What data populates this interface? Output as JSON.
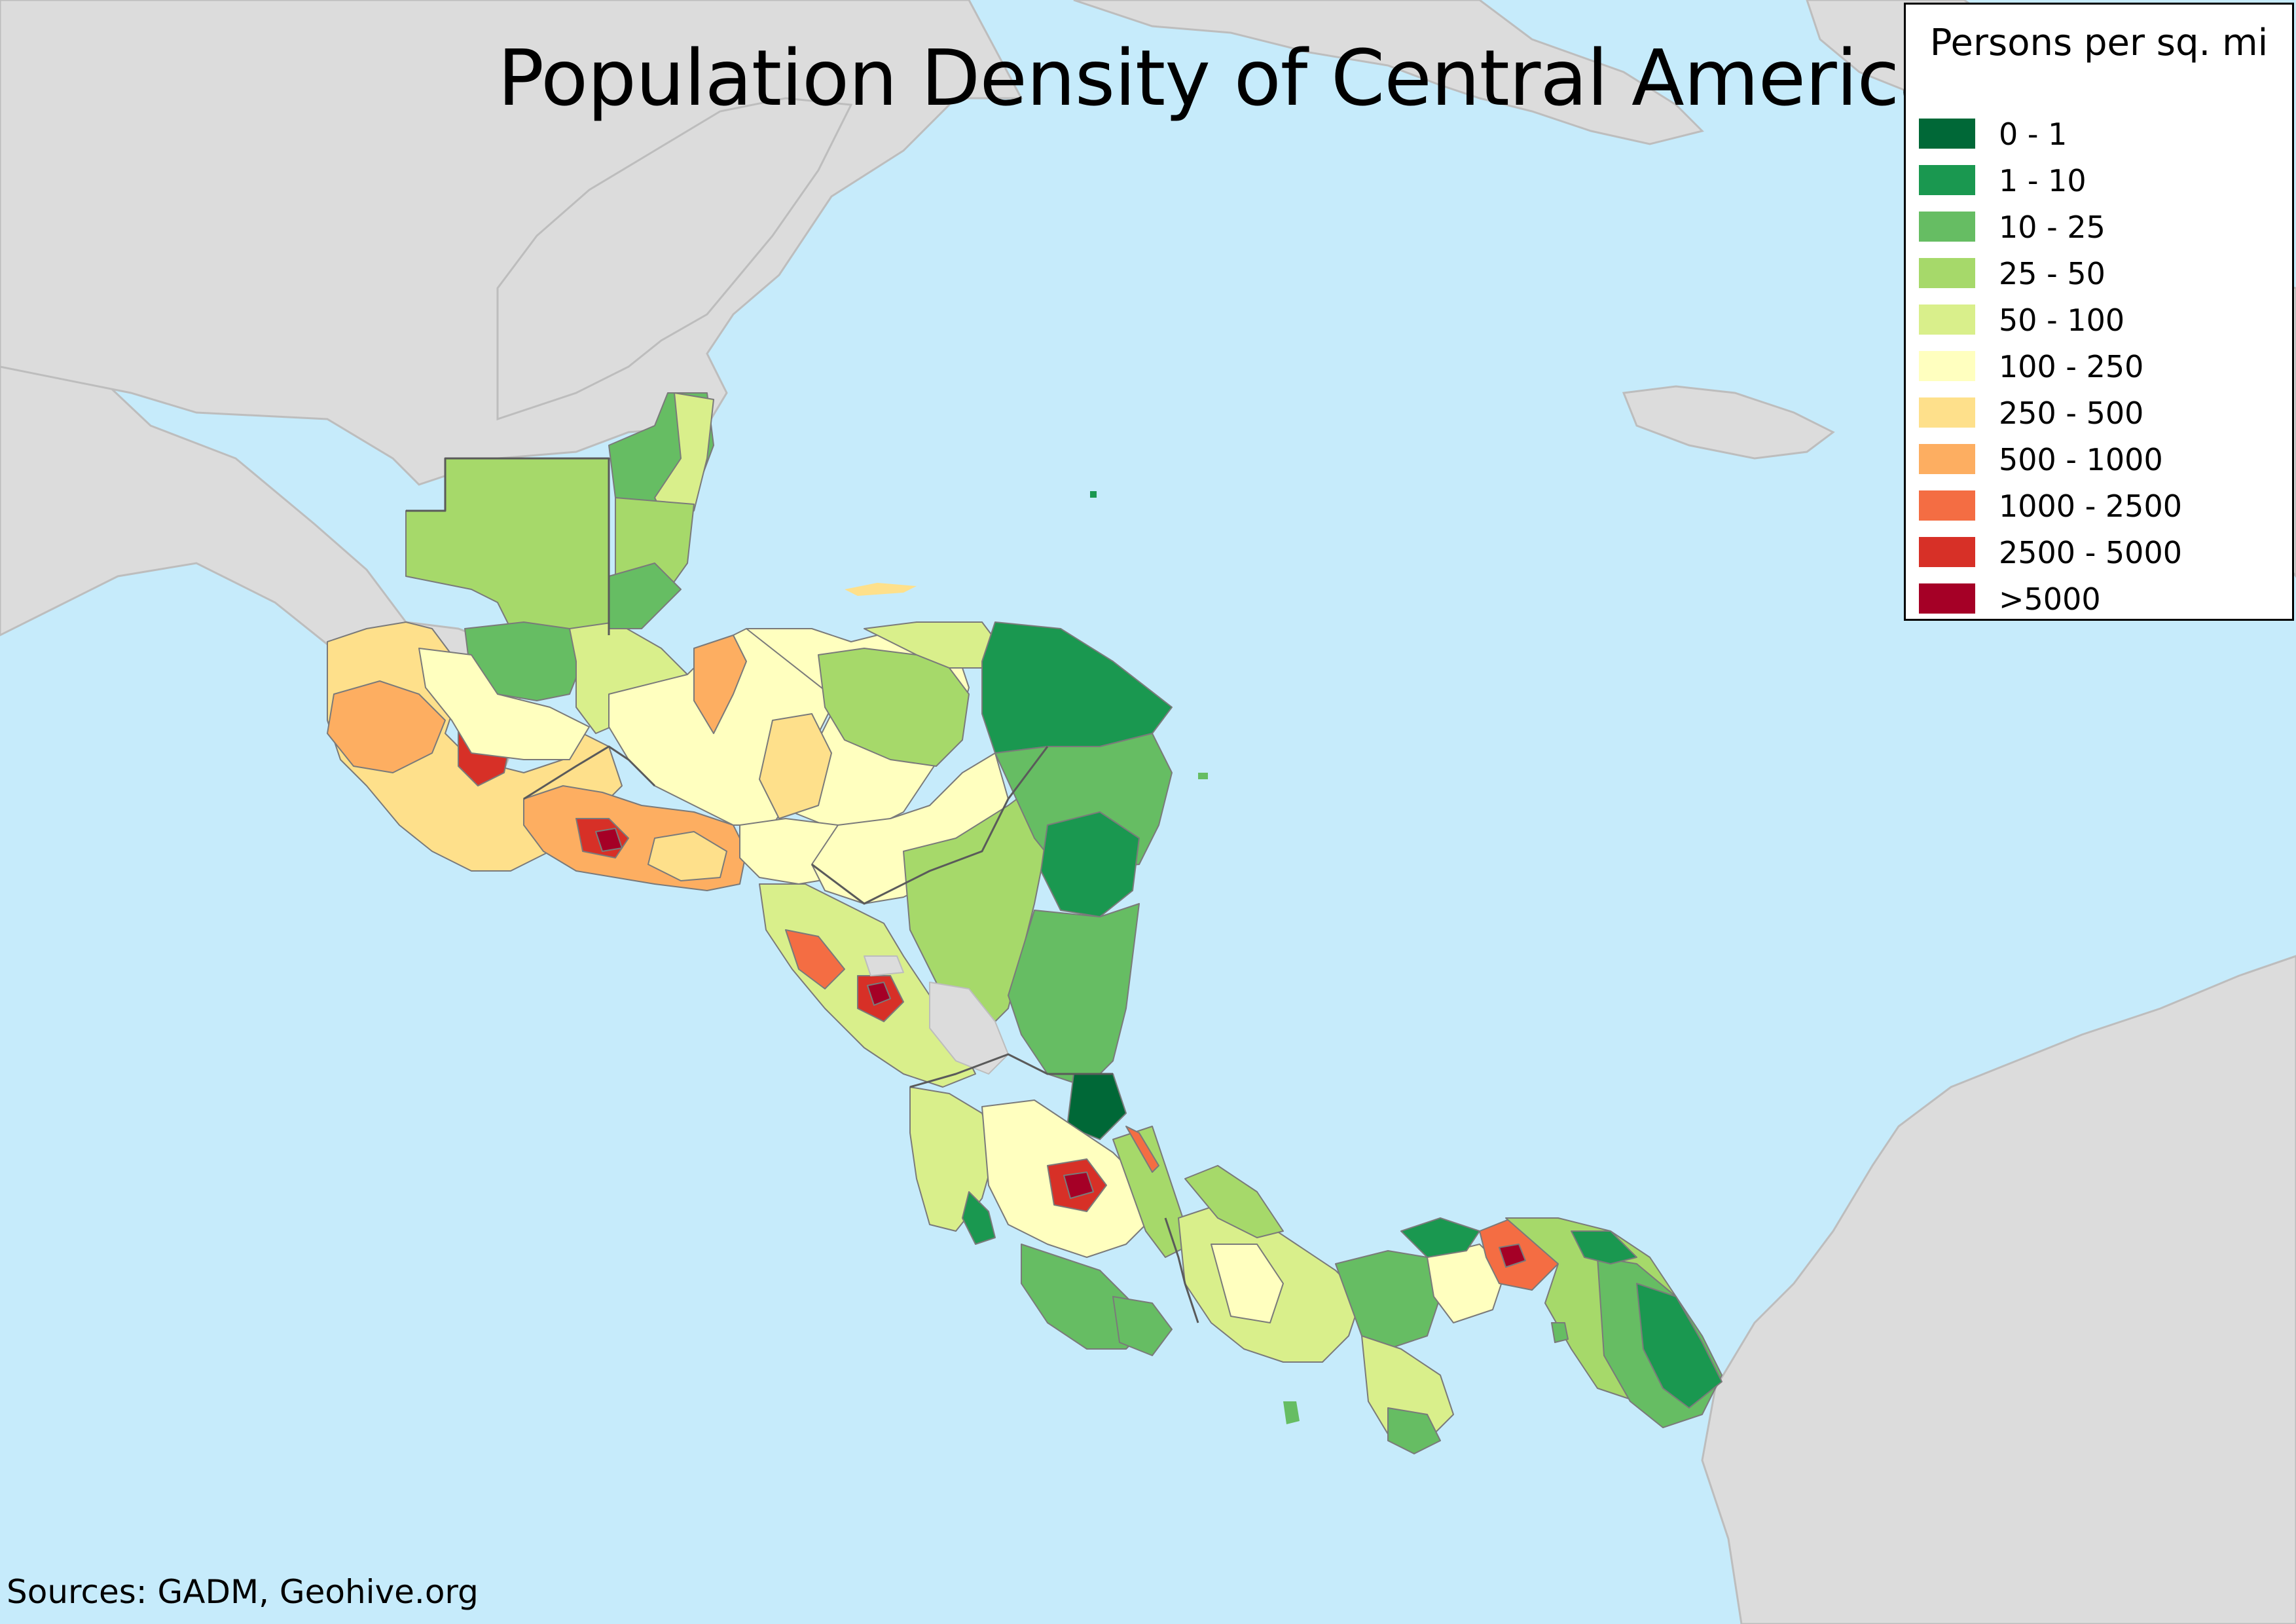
{
  "title": "Population Density of Central America",
  "sources": "Sources: GADM, Geohive.org",
  "legend": {
    "title": "Persons per sq. mi",
    "items": [
      {
        "label": "0 - 1",
        "color": "#006837"
      },
      {
        "label": "1 - 10",
        "color": "#1a9850"
      },
      {
        "label": "10 - 25",
        "color": "#66bd63"
      },
      {
        "label": "25 - 50",
        "color": "#a6d96a"
      },
      {
        "label": "50 - 100",
        "color": "#d9ef8b"
      },
      {
        "label": "100 - 250",
        "color": "#ffffbf"
      },
      {
        "label": "250 - 500",
        "color": "#fee08b"
      },
      {
        "label": "500 - 1000",
        "color": "#fdae61"
      },
      {
        "label": "1000 - 2500",
        "color": "#f46d43"
      },
      {
        "label": "2500 - 5000",
        "color": "#d73027"
      },
      {
        "label": ">5000",
        "color": "#a50026"
      }
    ]
  },
  "colors": {
    "ocean": "#c6ebfb",
    "land_outside": "#dcdcdc",
    "lake": "#dcdcdc",
    "border": "#5a5a5a"
  }
}
